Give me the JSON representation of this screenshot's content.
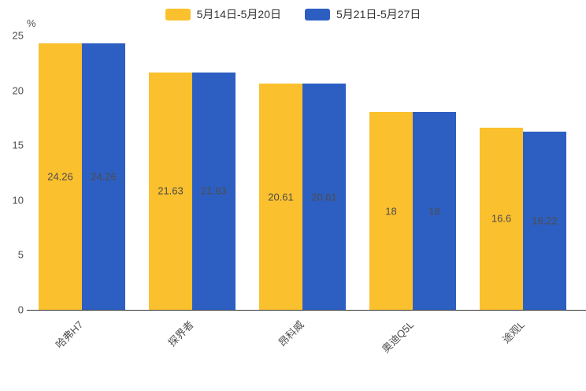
{
  "chart_data": {
    "type": "bar",
    "title": "",
    "unit": "%",
    "categories": [
      "哈弗H7",
      "探界者",
      "昂科威",
      "奥迪Q5L",
      "途观L"
    ],
    "series": [
      {
        "name": "5月14日-5月20日",
        "color": "#FBC02D",
        "values": [
          24.26,
          21.63,
          20.61,
          18,
          16.6
        ]
      },
      {
        "name": "5月21日-5月27日",
        "color": "#2D5FC2",
        "values": [
          24.26,
          21.63,
          20.61,
          18,
          16.22
        ]
      }
    ],
    "ylim": [
      0,
      25
    ],
    "yticks": [
      0,
      5,
      10,
      15,
      20,
      25
    ],
    "legend_position": "top",
    "grid": false,
    "value_labels_inside_bars": true,
    "colors": {
      "axis_line": "#333333",
      "tick_text": "#4e4e4e",
      "value_label_text": "#4d4d4d",
      "legend_text": "#333333"
    }
  }
}
